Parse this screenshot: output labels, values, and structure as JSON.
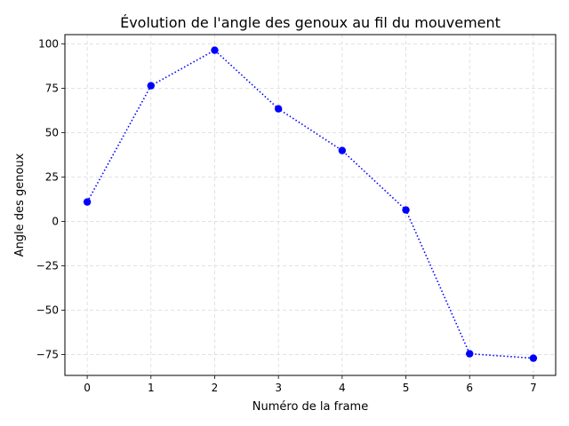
{
  "chart_data": {
    "type": "line",
    "title": "Évolution de l'angle des genoux au fil du mouvement",
    "xlabel": "Numéro de la frame",
    "ylabel": "Angle des genoux",
    "x": [
      0,
      1,
      2,
      3,
      4,
      5,
      6,
      7
    ],
    "series": [
      {
        "values": [
          11,
          76.5,
          96.5,
          63.5,
          40,
          6.5,
          -74.5,
          -77
        ]
      }
    ],
    "xlim": [
      -0.35,
      7.35
    ],
    "ylim": [
      -86.7,
      105.3
    ],
    "xticks": [
      0,
      1,
      2,
      3,
      4,
      5,
      6,
      7
    ],
    "xtick_labels": [
      "0",
      "1",
      "2",
      "3",
      "4",
      "5",
      "6",
      "7"
    ],
    "yticks": [
      100,
      75,
      50,
      25,
      0,
      -25,
      -50,
      -75
    ],
    "ytick_labels": [
      "100",
      "75",
      "50",
      "25",
      "0",
      "−25",
      "−50",
      "−75"
    ],
    "grid": true,
    "line_style": "dotted",
    "marker": "circle",
    "colors": {
      "series": "#0000ff",
      "grid": "#d9d9d9",
      "axes": "#000000"
    }
  }
}
